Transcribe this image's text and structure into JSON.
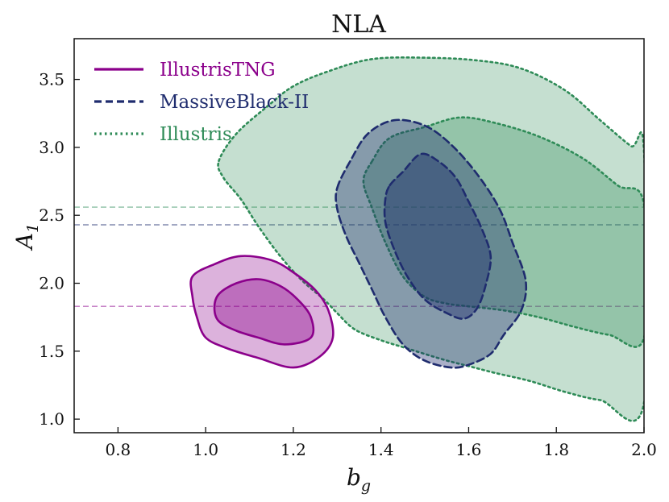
{
  "chart_data": {
    "type": "contour",
    "title": "NLA",
    "xlabel_base": "b",
    "xlabel_sub": "g",
    "ylabel_base": "A",
    "ylabel_sub": "1",
    "xlim": [
      0.7,
      2.0
    ],
    "ylim": [
      0.9,
      3.8
    ],
    "xticks": [
      "0.8",
      "1.0",
      "1.2",
      "1.4",
      "1.6",
      "1.8",
      "2.0"
    ],
    "yticks": [
      "1.0",
      "1.5",
      "2.0",
      "2.5",
      "3.0",
      "3.5"
    ],
    "legend_position": "top-left",
    "series": [
      {
        "name": "Illustris",
        "color": "#2e8b57",
        "linestyle": "dotted",
        "reference_line": 2.56,
        "contours": [
          {
            "level": "outer",
            "fill_opacity": 0.28,
            "points": [
              [
                1.03,
                2.9
              ],
              [
                1.07,
                3.1
              ],
              [
                1.14,
                3.3
              ],
              [
                1.2,
                3.45
              ],
              [
                1.28,
                3.56
              ],
              [
                1.38,
                3.65
              ],
              [
                1.5,
                3.66
              ],
              [
                1.62,
                3.64
              ],
              [
                1.72,
                3.58
              ],
              [
                1.82,
                3.42
              ],
              [
                1.9,
                3.2
              ],
              [
                1.97,
                3.01
              ],
              [
                2.0,
                2.97
              ],
              [
                2.0,
                1.12
              ],
              [
                1.9,
                1.14
              ],
              [
                1.82,
                1.2
              ],
              [
                1.74,
                1.28
              ],
              [
                1.66,
                1.34
              ],
              [
                1.6,
                1.39
              ],
              [
                1.54,
                1.44
              ],
              [
                1.46,
                1.52
              ],
              [
                1.4,
                1.58
              ],
              [
                1.34,
                1.66
              ],
              [
                1.3,
                1.78
              ],
              [
                1.27,
                1.88
              ],
              [
                1.22,
                2.02
              ],
              [
                1.17,
                2.2
              ],
              [
                1.12,
                2.42
              ],
              [
                1.08,
                2.62
              ],
              [
                1.04,
                2.78
              ]
            ]
          },
          {
            "level": "inner",
            "fill_opacity": 0.32,
            "points": [
              [
                1.38,
                2.9
              ],
              [
                1.42,
                3.07
              ],
              [
                1.5,
                3.15
              ],
              [
                1.58,
                3.22
              ],
              [
                1.66,
                3.18
              ],
              [
                1.76,
                3.08
              ],
              [
                1.86,
                2.92
              ],
              [
                1.94,
                2.72
              ],
              [
                2.0,
                2.58
              ],
              [
                2.0,
                1.6
              ],
              [
                1.92,
                1.62
              ],
              [
                1.84,
                1.68
              ],
              [
                1.76,
                1.75
              ],
              [
                1.68,
                1.8
              ],
              [
                1.6,
                1.83
              ],
              [
                1.55,
                1.85
              ],
              [
                1.5,
                1.9
              ],
              [
                1.45,
                2.05
              ],
              [
                1.41,
                2.3
              ],
              [
                1.38,
                2.55
              ],
              [
                1.36,
                2.75
              ]
            ]
          }
        ]
      },
      {
        "name": "MassiveBlack-II",
        "color": "#1f2c6e",
        "linestyle": "dashed",
        "reference_line": 2.43,
        "contours": [
          {
            "level": "outer",
            "fill_opacity": 0.38,
            "points": [
              [
                1.3,
                2.7
              ],
              [
                1.33,
                2.9
              ],
              [
                1.37,
                3.1
              ],
              [
                1.43,
                3.2
              ],
              [
                1.5,
                3.16
              ],
              [
                1.56,
                3.02
              ],
              [
                1.62,
                2.8
              ],
              [
                1.67,
                2.55
              ],
              [
                1.7,
                2.3
              ],
              [
                1.73,
                2.02
              ],
              [
                1.72,
                1.8
              ],
              [
                1.68,
                1.62
              ],
              [
                1.65,
                1.48
              ],
              [
                1.6,
                1.4
              ],
              [
                1.56,
                1.38
              ],
              [
                1.5,
                1.43
              ],
              [
                1.45,
                1.55
              ],
              [
                1.41,
                1.75
              ],
              [
                1.38,
                1.95
              ],
              [
                1.35,
                2.15
              ],
              [
                1.32,
                2.35
              ],
              [
                1.3,
                2.55
              ]
            ]
          },
          {
            "level": "inner",
            "fill_opacity": 0.42,
            "points": [
              [
                1.42,
                2.72
              ],
              [
                1.45,
                2.82
              ],
              [
                1.49,
                2.95
              ],
              [
                1.53,
                2.9
              ],
              [
                1.57,
                2.78
              ],
              [
                1.6,
                2.6
              ],
              [
                1.63,
                2.4
              ],
              [
                1.65,
                2.2
              ],
              [
                1.64,
                2.0
              ],
              [
                1.62,
                1.82
              ],
              [
                1.59,
                1.74
              ],
              [
                1.55,
                1.78
              ],
              [
                1.5,
                1.88
              ],
              [
                1.46,
                2.05
              ],
              [
                1.43,
                2.25
              ],
              [
                1.41,
                2.45
              ],
              [
                1.41,
                2.62
              ]
            ]
          }
        ]
      },
      {
        "name": "IllustrisTNG",
        "color": "#8b008b",
        "linestyle": "solid",
        "reference_line": 1.83,
        "contours": [
          {
            "level": "outer",
            "fill_opacity": 0.3,
            "points": [
              [
                0.97,
                2.05
              ],
              [
                1.02,
                2.14
              ],
              [
                1.08,
                2.2
              ],
              [
                1.15,
                2.17
              ],
              [
                1.2,
                2.08
              ],
              [
                1.25,
                1.95
              ],
              [
                1.28,
                1.8
              ],
              [
                1.29,
                1.6
              ],
              [
                1.26,
                1.46
              ],
              [
                1.2,
                1.38
              ],
              [
                1.12,
                1.45
              ],
              [
                1.05,
                1.52
              ],
              [
                1.0,
                1.6
              ],
              [
                0.98,
                1.75
              ],
              [
                0.97,
                1.9
              ]
            ]
          },
          {
            "level": "inner",
            "fill_opacity": 0.38,
            "points": [
              [
                1.03,
                1.92
              ],
              [
                1.07,
                2.0
              ],
              [
                1.12,
                2.03
              ],
              [
                1.17,
                1.98
              ],
              [
                1.21,
                1.88
              ],
              [
                1.24,
                1.75
              ],
              [
                1.24,
                1.6
              ],
              [
                1.18,
                1.55
              ],
              [
                1.12,
                1.6
              ],
              [
                1.07,
                1.65
              ],
              [
                1.03,
                1.72
              ],
              [
                1.02,
                1.82
              ]
            ]
          }
        ]
      }
    ]
  }
}
